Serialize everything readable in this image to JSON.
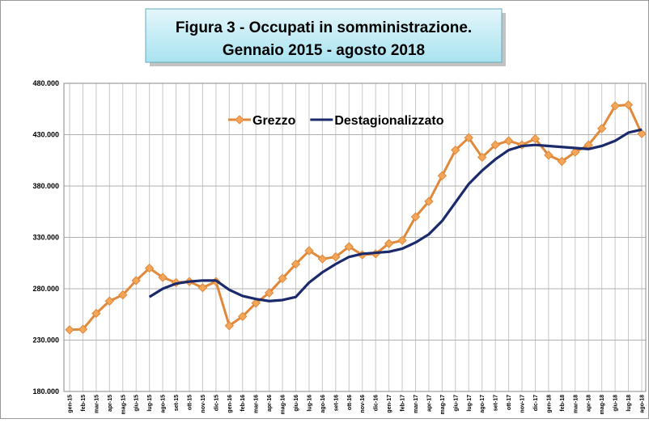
{
  "chart_data": {
    "type": "line",
    "title": [
      "Figura 3 - Occupati in somministrazione.",
      "Gennaio 2015 - agosto 2018"
    ],
    "categories": [
      "gen-15",
      "feb-15",
      "mar-15",
      "apr-15",
      "mag-15",
      "giu-15",
      "lug-15",
      "ago-15",
      "set-15",
      "ott-15",
      "nov-15",
      "dic-15",
      "gen-16",
      "feb-16",
      "mar-16",
      "apr-16",
      "mag-16",
      "giu-16",
      "lug-16",
      "ago-16",
      "set-16",
      "ott-16",
      "nov-16",
      "dic-16",
      "gen-17",
      "feb-17",
      "mar-17",
      "apr-17",
      "mag-17",
      "giu-17",
      "lug-17",
      "ago-17",
      "set-17",
      "ott-17",
      "nov-17",
      "dic-17",
      "gen-18",
      "feb-18",
      "mar-18",
      "apr-18",
      "mag-18",
      "giu-18",
      "lug-18",
      "ago-18"
    ],
    "series": [
      {
        "name": "Grezzo",
        "color": "#e0893a",
        "marker": "diamond",
        "values": [
          240000,
          240500,
          256000,
          268000,
          274000,
          288000,
          300000,
          291000,
          286000,
          287000,
          281000,
          287000,
          244000,
          253000,
          266000,
          276000,
          290000,
          304000,
          317000,
          309000,
          311000,
          321000,
          313000,
          314000,
          324000,
          327000,
          350000,
          365000,
          390000,
          415000,
          427000,
          408000,
          420000,
          424000,
          420000,
          426000,
          410000,
          404000,
          413000,
          420000,
          436000,
          458000,
          459000,
          431000
        ]
      },
      {
        "name": "Destagionalizzato",
        "color": "#1b2a6b",
        "values": [
          null,
          null,
          null,
          null,
          null,
          null,
          272000,
          280000,
          285000,
          287000,
          288000,
          288000,
          279000,
          273000,
          270000,
          268000,
          269000,
          272000,
          286000,
          296000,
          304000,
          311000,
          314000,
          315000,
          316000,
          319000,
          325000,
          333000,
          346000,
          364000,
          382000,
          395000,
          406000,
          415000,
          419000,
          420000,
          419000,
          418000,
          417000,
          416000,
          419000,
          424000,
          432000,
          435000
        ]
      }
    ],
    "ylim": [
      180000,
      480000
    ],
    "yticks": [
      {
        "value": 180000,
        "label": "180.000"
      },
      {
        "value": 230000,
        "label": "230.000"
      },
      {
        "value": 280000,
        "label": "280.000"
      },
      {
        "value": 330000,
        "label": "330.000"
      },
      {
        "value": 380000,
        "label": "380.000"
      },
      {
        "value": 430000,
        "label": "430.000"
      },
      {
        "value": 480000,
        "label": "480.000"
      }
    ],
    "grid": true,
    "legend": "top"
  }
}
